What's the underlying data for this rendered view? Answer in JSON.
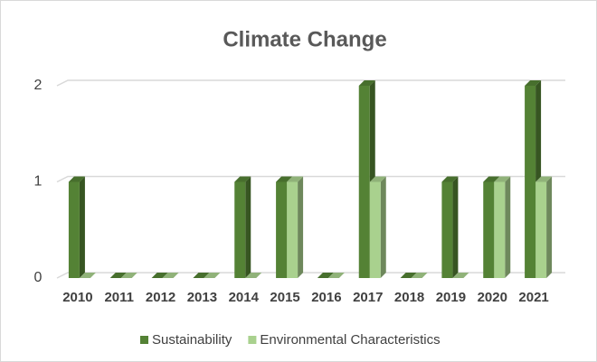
{
  "chart_data": {
    "type": "bar3d",
    "title": "Climate Change",
    "categories": [
      "2010",
      "2011",
      "2012",
      "2013",
      "2014",
      "2015",
      "2016",
      "2017",
      "2018",
      "2019",
      "2020",
      "2021"
    ],
    "series": [
      {
        "name": "Sustainability",
        "color": "#548235",
        "values": [
          1,
          0,
          0,
          0,
          1,
          1,
          0,
          2,
          0,
          1,
          1,
          2
        ]
      },
      {
        "name": "Environmental Characteristics",
        "color": "#a9d18e",
        "values": [
          0,
          0,
          0,
          0,
          0,
          1,
          0,
          1,
          0,
          0,
          1,
          1
        ]
      }
    ],
    "ylim": [
      0,
      2
    ],
    "yticks": [
      0,
      1,
      2
    ],
    "grid": true,
    "legend": "bottom"
  }
}
